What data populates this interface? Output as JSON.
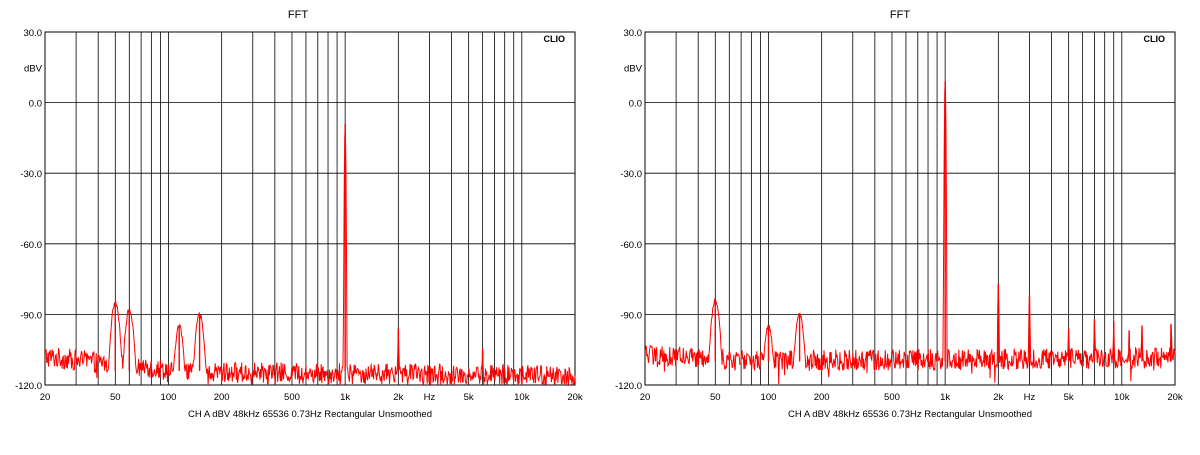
{
  "chart_data": [
    {
      "type": "line",
      "title": "FFT",
      "brand": "CLIO",
      "ylabel": "dBV",
      "xlabel": "Hz",
      "x_scale": "log",
      "xlim": [
        20,
        20000
      ],
      "ylim": [
        -120,
        30
      ],
      "y_ticks": [
        "30.0",
        "0.0",
        "-30.0",
        "-60.0",
        "-90.0",
        "-120.0"
      ],
      "x_ticks": [
        "20",
        "50",
        "100",
        "200",
        "500",
        "1k",
        "2k",
        "Hz",
        "5k",
        "10k",
        "20k"
      ],
      "footer": "CH A   dBV   48kHz   65536   0.73Hz   Rectangular   Unsmoothed",
      "grid": true,
      "line_color": "#ff0000",
      "noise_floor_db": -114,
      "peaks": [
        {
          "x": 50,
          "y": -85
        },
        {
          "x": 60,
          "y": -88
        },
        {
          "x": 115,
          "y": -95
        },
        {
          "x": 150,
          "y": -90
        },
        {
          "x": 1000,
          "y": -9
        },
        {
          "x": 2000,
          "y": -96
        },
        {
          "x": 6000,
          "y": -105
        }
      ]
    },
    {
      "type": "line",
      "title": "FFT",
      "brand": "CLIO",
      "ylabel": "dBV",
      "xlabel": "Hz",
      "x_scale": "log",
      "xlim": [
        20,
        20000
      ],
      "ylim": [
        -120,
        30
      ],
      "y_ticks": [
        "30.0",
        "0.0",
        "-30.0",
        "-60.0",
        "-90.0",
        "-120.0"
      ],
      "x_ticks": [
        "20",
        "50",
        "100",
        "200",
        "500",
        "1k",
        "2k",
        "Hz",
        "5k",
        "10k",
        "20k"
      ],
      "footer": "CH A   dBV   48kHz   65536   0.73Hz   Rectangular   Unsmoothed",
      "grid": true,
      "line_color": "#ff0000",
      "noise_floor_db": -110,
      "peaks": [
        {
          "x": 50,
          "y": -84
        },
        {
          "x": 100,
          "y": -95
        },
        {
          "x": 150,
          "y": -90
        },
        {
          "x": 1000,
          "y": 9
        },
        {
          "x": 2000,
          "y": -77
        },
        {
          "x": 3000,
          "y": -82
        },
        {
          "x": 5000,
          "y": -96
        },
        {
          "x": 7000,
          "y": -92
        },
        {
          "x": 9000,
          "y": -93
        },
        {
          "x": 11000,
          "y": -97
        },
        {
          "x": 13000,
          "y": -95
        },
        {
          "x": 19000,
          "y": -94
        }
      ]
    }
  ]
}
